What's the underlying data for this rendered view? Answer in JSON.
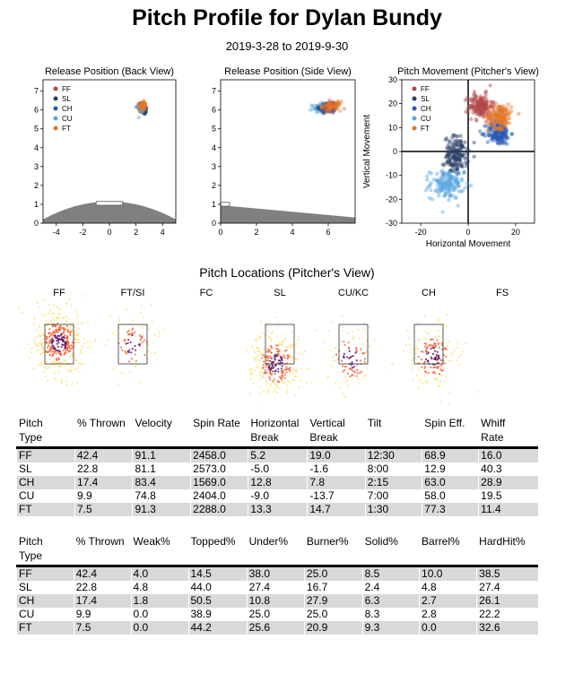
{
  "page": {
    "title": "Pitch Profile for Dylan Bundy",
    "subtitle": "2019-3-28 to 2019-9-30"
  },
  "colors": {
    "FF": "#b2484a",
    "SL": "#2a3f66",
    "CH": "#2958b5",
    "CU": "#5aa7df",
    "FT": "#e2772a",
    "mound": "#808080",
    "heat_low": "#fde58a",
    "heat_mid": "#f0643a",
    "heat_high": "#5b0f5b"
  },
  "chart_data": [
    {
      "id": "release_back",
      "type": "scatter",
      "title": "Release Position (Back View)",
      "xlim": [
        -5,
        5
      ],
      "ylim": [
        0,
        7.6
      ],
      "xticks": [
        -4,
        -2,
        0,
        2,
        4
      ],
      "yticks": [
        0,
        1,
        2,
        3,
        4,
        5,
        6,
        7
      ],
      "legend": [
        "FF",
        "SL",
        "CH",
        "CU",
        "FT"
      ],
      "series": [
        {
          "name": "FF",
          "cx": 2.4,
          "cy": 6.2,
          "sx": 0.12,
          "sy": 0.12
        },
        {
          "name": "SL",
          "cx": 2.6,
          "cy": 6.0,
          "sx": 0.12,
          "sy": 0.12
        },
        {
          "name": "CH",
          "cx": 2.5,
          "cy": 6.1,
          "sx": 0.12,
          "sy": 0.12
        },
        {
          "name": "CU",
          "cx": 2.4,
          "cy": 6.1,
          "sx": 0.12,
          "sy": 0.12
        },
        {
          "name": "FT",
          "cx": 2.5,
          "cy": 6.2,
          "sx": 0.12,
          "sy": 0.12
        }
      ]
    },
    {
      "id": "release_side",
      "type": "scatter",
      "title": "Release Position (Side View)",
      "xlim": [
        0,
        7.5
      ],
      "ylim": [
        0,
        7.6
      ],
      "xticks": [
        0,
        2,
        4,
        6
      ],
      "yticks": [
        0,
        1,
        2,
        3,
        4,
        5,
        6,
        7
      ],
      "series": [
        {
          "name": "CU",
          "cx": 5.5,
          "cy": 6.1,
          "sx": 0.2,
          "sy": 0.12
        },
        {
          "name": "SL",
          "cx": 5.9,
          "cy": 6.1,
          "sx": 0.2,
          "sy": 0.12
        },
        {
          "name": "CH",
          "cx": 6.0,
          "cy": 6.1,
          "sx": 0.2,
          "sy": 0.12
        },
        {
          "name": "FF",
          "cx": 6.1,
          "cy": 6.2,
          "sx": 0.2,
          "sy": 0.12
        },
        {
          "name": "FT",
          "cx": 6.2,
          "cy": 6.2,
          "sx": 0.25,
          "sy": 0.12
        }
      ]
    },
    {
      "id": "movement",
      "type": "scatter",
      "title": "Pitch Movement (Pitcher's View)",
      "xlabel": "Horizontal Movement",
      "ylabel": "Vertical Movement",
      "xlim": [
        -28,
        28
      ],
      "ylim": [
        -30,
        30
      ],
      "xticks": [
        -20,
        0,
        20
      ],
      "yticks": [
        -30,
        -20,
        -10,
        0,
        10,
        20,
        30
      ],
      "legend": [
        "FF",
        "SL",
        "CH",
        "CU",
        "FT"
      ],
      "series": [
        {
          "name": "SL",
          "cx": -5,
          "cy": -1.6,
          "sx": 2.5,
          "sy": 4
        },
        {
          "name": "CU",
          "cx": -9,
          "cy": -13.7,
          "sx": 3.5,
          "sy": 3
        },
        {
          "name": "FF",
          "cx": 5.2,
          "cy": 19.0,
          "sx": 2.5,
          "sy": 2.5
        },
        {
          "name": "CH",
          "cx": 12.8,
          "cy": 7.8,
          "sx": 2.5,
          "sy": 2.5
        },
        {
          "name": "FT",
          "cx": 13.3,
          "cy": 14.7,
          "sx": 2.5,
          "sy": 2.5
        }
      ]
    },
    {
      "id": "locations",
      "type": "scatter",
      "title": "Pitch Locations (Pitcher's View)",
      "panels": [
        {
          "label": "FF",
          "count": 420,
          "cx": 0.0,
          "cy": 0.05
        },
        {
          "label": "FT/SI",
          "count": 90,
          "cx": 0.0,
          "cy": 0.0
        },
        {
          "label": "FC",
          "count": 0,
          "cx": 0.0,
          "cy": 0.0
        },
        {
          "label": "SL",
          "count": 300,
          "cx": -0.15,
          "cy": -0.55
        },
        {
          "label": "CU/KC",
          "count": 110,
          "cx": -0.1,
          "cy": -0.4
        },
        {
          "label": "CH",
          "count": 190,
          "cx": 0.15,
          "cy": -0.35
        },
        {
          "label": "FS",
          "count": 0,
          "cx": 0.0,
          "cy": 0.0
        }
      ]
    }
  ],
  "table1": {
    "headers": [
      [
        "Pitch",
        "Type"
      ],
      [
        "% Thrown"
      ],
      [
        "Velocity"
      ],
      [
        "Spin Rate"
      ],
      [
        "Horizontal",
        "Break"
      ],
      [
        "Vertical",
        "Break"
      ],
      [
        "Tilt"
      ],
      [
        "Spin Eff."
      ],
      [
        "Whiff",
        "Rate"
      ]
    ],
    "rows": [
      [
        "FF",
        "42.4",
        "91.1",
        "2458.0",
        "5.2",
        "19.0",
        "12:30",
        "68.9",
        "16.0"
      ],
      [
        "SL",
        "22.8",
        "81.1",
        "2573.0",
        "-5.0",
        "-1.6",
        "8:00",
        "12.9",
        "40.3"
      ],
      [
        "CH",
        "17.4",
        "83.4",
        "1569.0",
        "12.8",
        "7.8",
        "2:15",
        "63.0",
        "28.9"
      ],
      [
        "CU",
        "9.9",
        "74.8",
        "2404.0",
        "-9.0",
        "-13.7",
        "7:00",
        "58.0",
        "19.5"
      ],
      [
        "FT",
        "7.5",
        "91.3",
        "2288.0",
        "13.3",
        "14.7",
        "1:30",
        "77.3",
        "11.4"
      ]
    ]
  },
  "table2": {
    "headers": [
      [
        "Pitch",
        "Type"
      ],
      [
        "% Thrown"
      ],
      [
        "Weak%"
      ],
      [
        "Topped%"
      ],
      [
        "Under%"
      ],
      [
        "Burner%"
      ],
      [
        "Solid%"
      ],
      [
        "Barrel%"
      ],
      [
        "HardHit%"
      ]
    ],
    "rows": [
      [
        "FF",
        "42.4",
        "4.0",
        "14.5",
        "38.0",
        "25.0",
        "8.5",
        "10.0",
        "38.5"
      ],
      [
        "SL",
        "22.8",
        "4.8",
        "44.0",
        "27.4",
        "16.7",
        "2.4",
        "4.8",
        "27.4"
      ],
      [
        "CH",
        "17.4",
        "1.8",
        "50.5",
        "10.8",
        "27.9",
        "6.3",
        "2.7",
        "26.1"
      ],
      [
        "CU",
        "9.9",
        "0.0",
        "38.9",
        "25.0",
        "25.0",
        "8.3",
        "2.8",
        "22.2"
      ],
      [
        "FT",
        "7.5",
        "0.0",
        "44.2",
        "25.6",
        "20.9",
        "9.3",
        "0.0",
        "32.6"
      ]
    ]
  }
}
